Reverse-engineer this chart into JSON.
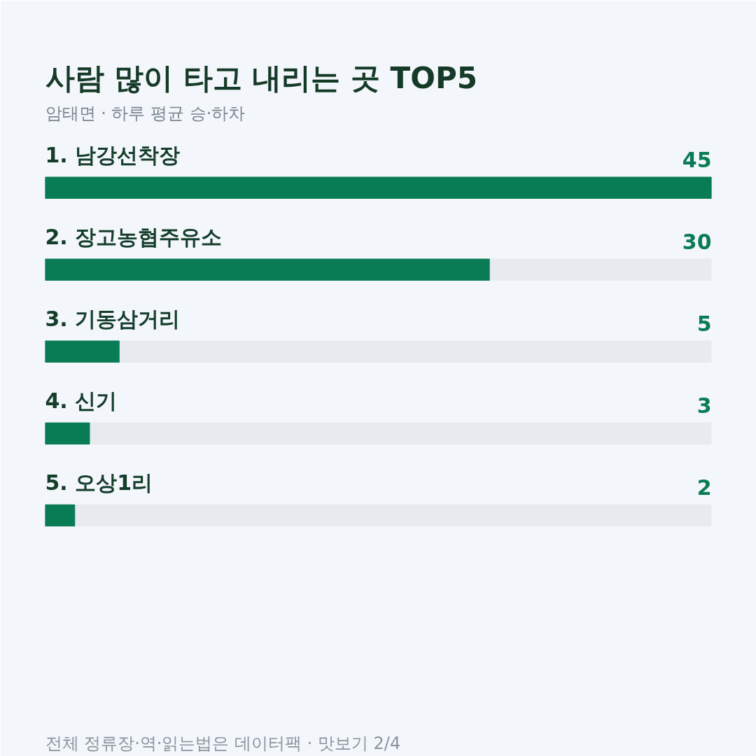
{
  "chart_data": {
    "type": "bar",
    "orientation": "horizontal",
    "title": "사람 많이 타고 내리는 곳 TOP5",
    "subtitle": "암태면 · 하루 평균 승·하차",
    "categories": [
      "1. 남강선착장",
      "2. 장고농협주유소",
      "3. 기동삼거리",
      "4. 신기",
      "5. 오상1리"
    ],
    "values": [
      45,
      30,
      5,
      3,
      2
    ],
    "color": "#0a7c55",
    "xlim": [
      0,
      45
    ],
    "data_labels": true,
    "tick_labels": false,
    "grid": false,
    "annotations": [
      "전체 정류장·역·읽는법은 데이터팩 · 맛보기 2/4"
    ]
  }
}
